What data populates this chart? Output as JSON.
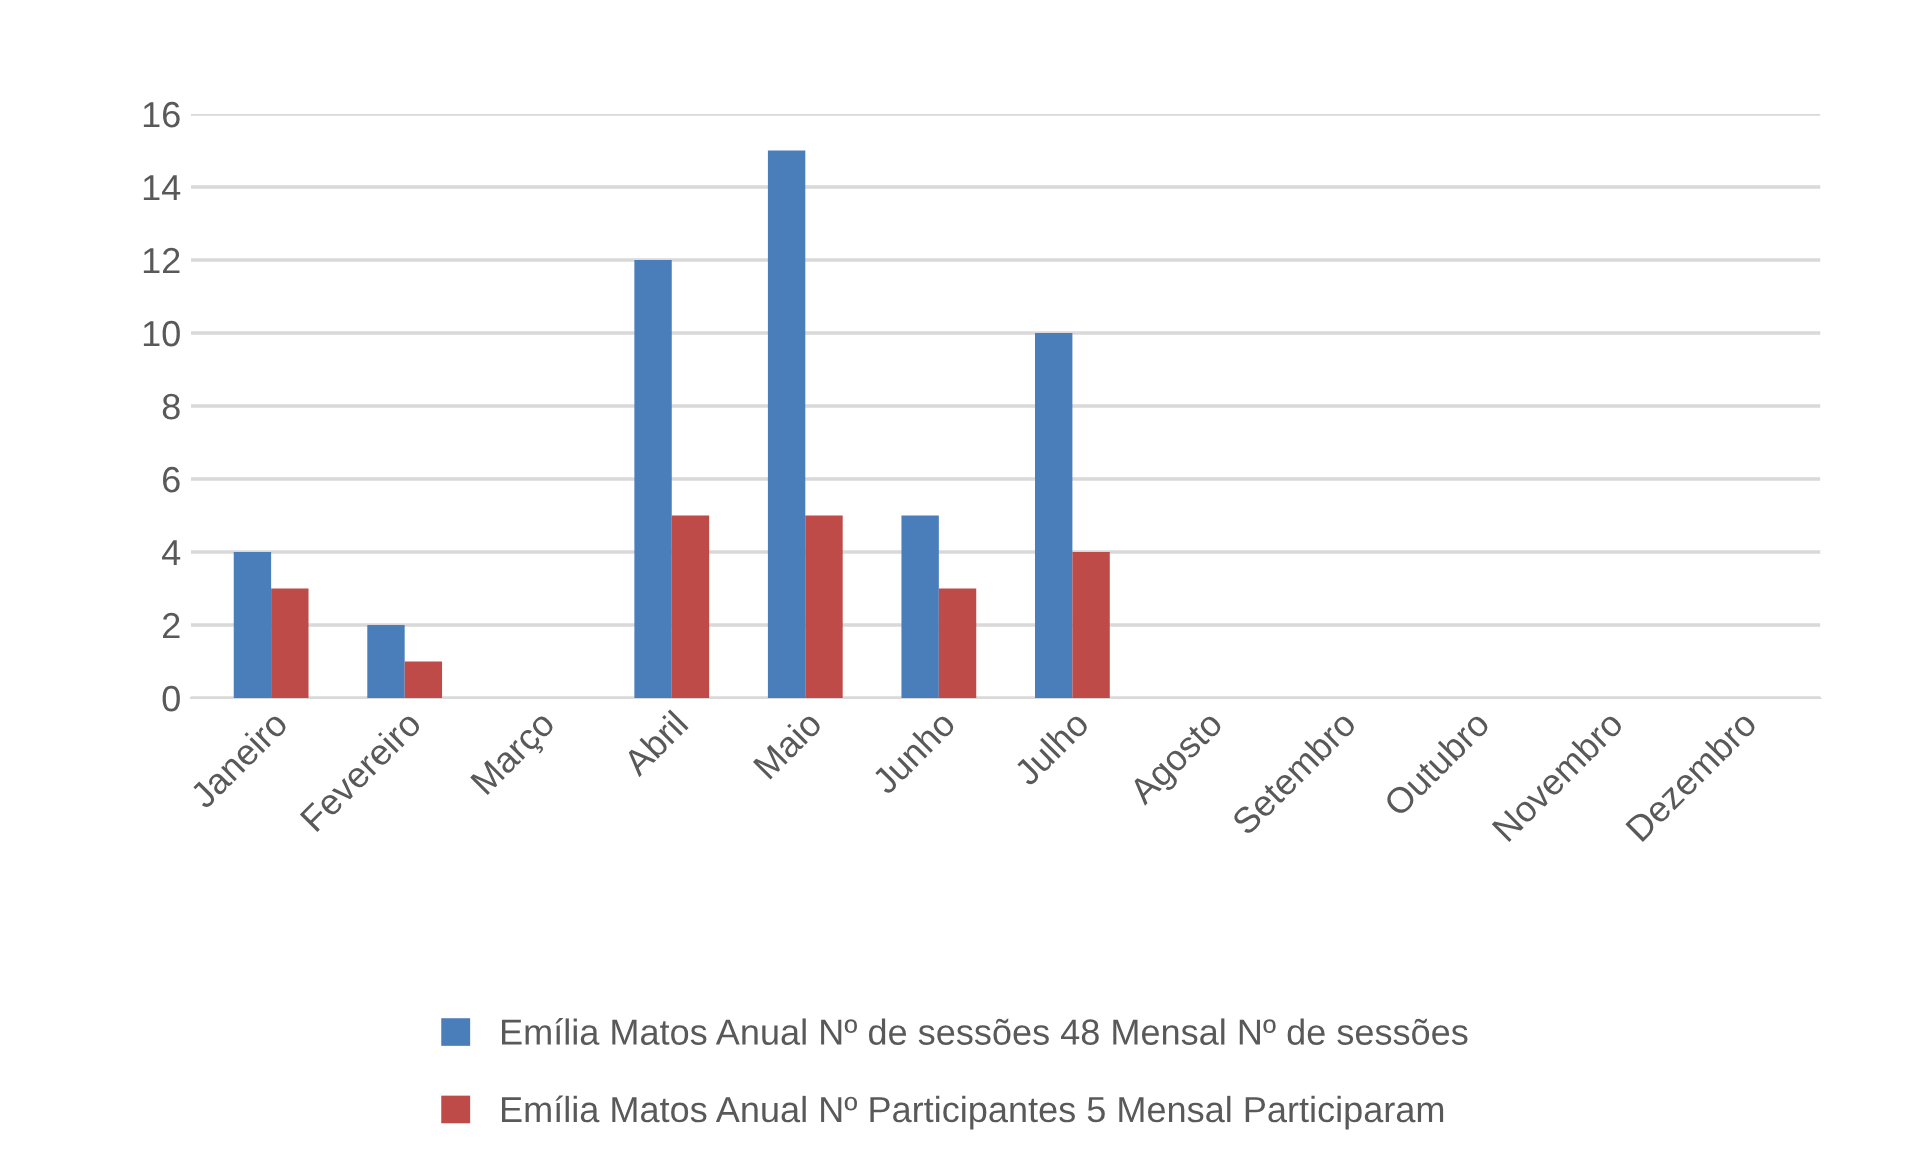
{
  "chart_data": {
    "type": "bar",
    "categories": [
      "Janeiro",
      "Fevereiro",
      "Março",
      "Abril",
      "Maio",
      "Junho",
      "Julho",
      "Agosto",
      "Setembro",
      "Outubro",
      "Novembro",
      "Dezembro"
    ],
    "series": [
      {
        "name": "Emília Matos Anual Nº de sessões 48 Mensal Nº de sessões",
        "color": "#4a7ebb",
        "values": [
          4,
          2,
          0,
          12,
          15,
          5,
          10,
          0,
          0,
          0,
          0,
          0
        ]
      },
      {
        "name": "Emília Matos Anual Nº Participantes 5 Mensal Participaram",
        "color": "#be4b48",
        "values": [
          3,
          1,
          0,
          5,
          5,
          3,
          4,
          0,
          0,
          0,
          0,
          0
        ]
      }
    ],
    "ylim": [
      0,
      16
    ],
    "yticks": [
      0,
      2,
      4,
      6,
      8,
      10,
      12,
      14,
      16
    ],
    "grid": "y",
    "legend": "bottom"
  }
}
